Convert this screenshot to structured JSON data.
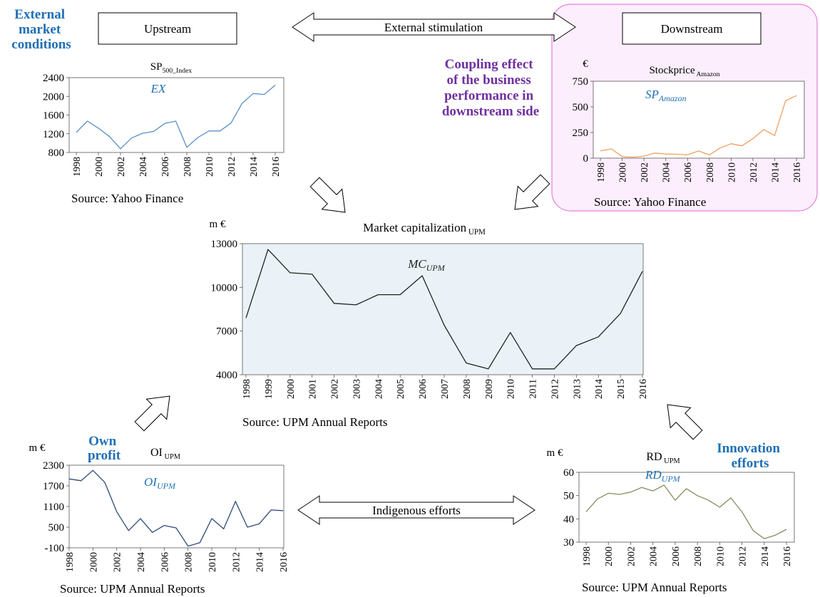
{
  "labels": {
    "external_market": [
      "External",
      "market",
      "conditions"
    ],
    "coupling": [
      "Coupling effect",
      "of the business",
      "performance in",
      "downstream side"
    ],
    "own_profit": [
      "Own",
      "profit"
    ],
    "innovation": [
      "Innovation",
      "efforts"
    ]
  },
  "boxes": {
    "upstream": "Upstream",
    "downstream": "Downstream"
  },
  "arrows": {
    "top": "External stimulation",
    "bottom": "Indigenous efforts"
  },
  "colors": {
    "blue_label": "#1f6fb5",
    "purple_label": "#7030a0",
    "sp500_line": "#5b8fc4",
    "amazon_line": "#f0a060",
    "mc_line": "#222222",
    "mc_fill": "#eaf2f7",
    "oi_line": "#2d4a7a",
    "rd_line": "#8a8a60",
    "highlight_border": "#e37fe0",
    "highlight_fill": "#fdeefd"
  },
  "chart_data": [
    {
      "id": "sp500",
      "type": "line",
      "title": "SP",
      "title_sub": "500_Index",
      "annotation": "EX",
      "unit": "",
      "source": "Source: Yahoo Finance",
      "x": [
        1998,
        1999,
        2000,
        2001,
        2002,
        2003,
        2004,
        2005,
        2006,
        2007,
        2008,
        2009,
        2010,
        2011,
        2012,
        2013,
        2014,
        2015,
        2016
      ],
      "xticks": [
        "1998",
        "2000",
        "2002",
        "2004",
        "2006",
        "2008",
        "2010",
        "2012",
        "2014",
        "2016"
      ],
      "yticks": [
        "800",
        "1200",
        "1600",
        "2000",
        "2400"
      ],
      "ylim": [
        800,
        2400
      ],
      "values": [
        1230,
        1470,
        1320,
        1140,
        880,
        1110,
        1210,
        1250,
        1420,
        1470,
        910,
        1120,
        1260,
        1260,
        1430,
        1850,
        2060,
        2040,
        2240
      ]
    },
    {
      "id": "amazon",
      "type": "line",
      "title": "Stockprice",
      "title_sub": "Amazon",
      "annotation": "SP",
      "annotation_sub": "Amazon",
      "unit": "€",
      "source": "Source: Yahoo Finance",
      "x": [
        1998,
        1999,
        2000,
        2001,
        2002,
        2003,
        2004,
        2005,
        2006,
        2007,
        2008,
        2009,
        2010,
        2011,
        2012,
        2013,
        2014,
        2015,
        2016
      ],
      "xticks": [
        "1998",
        "2000",
        "2002",
        "2004",
        "2006",
        "2008",
        "2010",
        "2012",
        "2014",
        "2016"
      ],
      "yticks": [
        "0",
        "250",
        "500",
        "750"
      ],
      "ylim": [
        0,
        750
      ],
      "values": [
        70,
        90,
        15,
        10,
        20,
        50,
        40,
        38,
        32,
        70,
        32,
        100,
        140,
        120,
        190,
        280,
        220,
        560,
        610
      ]
    },
    {
      "id": "mc",
      "type": "line",
      "title": "Market capitalization",
      "title_sub": "UPM",
      "annotation": "MC",
      "annotation_sub": "UPM",
      "unit": "m €",
      "source": "Source: UPM Annual Reports",
      "x": [
        1998,
        1999,
        2000,
        2001,
        2002,
        2003,
        2004,
        2005,
        2006,
        2007,
        2008,
        2009,
        2010,
        2011,
        2012,
        2013,
        2014,
        2015,
        2016
      ],
      "xticks": [
        "1998",
        "1999",
        "2000",
        "2001",
        "2002",
        "2003",
        "2004",
        "2005",
        "2006",
        "2007",
        "2008",
        "2009",
        "2010",
        "2011",
        "2012",
        "2013",
        "2014",
        "2015",
        "2016"
      ],
      "yticks": [
        "4000",
        "7000",
        "10000",
        "13000"
      ],
      "ylim": [
        4000,
        13000
      ],
      "values": [
        7900,
        12600,
        11000,
        10900,
        8900,
        8800,
        9500,
        9500,
        10800,
        7400,
        4800,
        4400,
        6900,
        4400,
        4400,
        6000,
        6600,
        8200,
        11100
      ]
    },
    {
      "id": "oi",
      "type": "line",
      "title": "OI",
      "title_sub": "UPM",
      "annotation": "OI",
      "annotation_sub": "UPM",
      "unit": "m €",
      "source": "Source: UPM Annual Reports",
      "x": [
        1998,
        1999,
        2000,
        2001,
        2002,
        2003,
        2004,
        2005,
        2006,
        2007,
        2008,
        2009,
        2010,
        2011,
        2012,
        2013,
        2014,
        2015,
        2016
      ],
      "xticks": [
        "1998",
        "2000",
        "2002",
        "2004",
        "2006",
        "2008",
        "2010",
        "2012",
        "2014",
        "2016"
      ],
      "yticks": [
        "-100",
        "500",
        "1100",
        "1700",
        "2300"
      ],
      "ylim": [
        -100,
        2300
      ],
      "values": [
        1900,
        1850,
        2150,
        1800,
        950,
        400,
        750,
        350,
        550,
        480,
        -50,
        50,
        750,
        450,
        1250,
        500,
        600,
        1000,
        980
      ]
    },
    {
      "id": "rd",
      "type": "line",
      "title": "RD",
      "title_sub": "UPM",
      "annotation": "RD",
      "annotation_sub": "UPM",
      "unit": "m €",
      "source": "Source: UPM Annual Reports",
      "x": [
        1998,
        1999,
        2000,
        2001,
        2002,
        2003,
        2004,
        2005,
        2006,
        2007,
        2008,
        2009,
        2010,
        2011,
        2012,
        2013,
        2014,
        2015,
        2016
      ],
      "xticks": [
        "1998",
        "2000",
        "2002",
        "2004",
        "2006",
        "2008",
        "2010",
        "2012",
        "2014",
        "2016"
      ],
      "yticks": [
        "30",
        "40",
        "50",
        "60"
      ],
      "ylim": [
        30,
        60
      ],
      "values": [
        43,
        48.5,
        51,
        50.5,
        51.5,
        53.5,
        52,
        54.5,
        48,
        53,
        50,
        48,
        45,
        49,
        43,
        35,
        31.5,
        33,
        35.5
      ]
    }
  ]
}
